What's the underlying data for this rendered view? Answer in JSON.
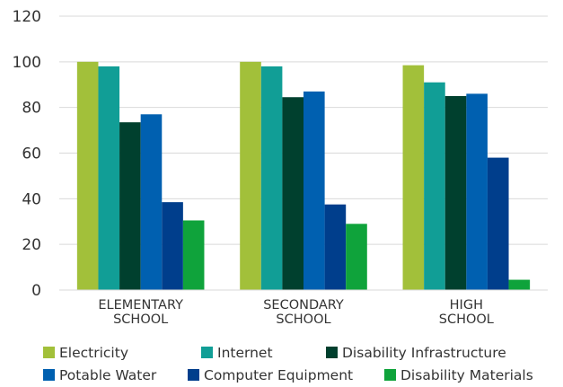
{
  "chart_data": {
    "type": "bar",
    "title": "",
    "xlabel": "",
    "ylabel": "",
    "ylim": [
      0,
      120
    ],
    "yticks": [
      0,
      20,
      40,
      60,
      80,
      100,
      120
    ],
    "grid": true,
    "legend_position": "bottom",
    "categories": [
      [
        "ELEMENTARY",
        "SCHOOL"
      ],
      [
        "SECONDARY",
        "SCHOOL"
      ],
      [
        "HIGH",
        "SCHOOL"
      ]
    ],
    "series": [
      {
        "name": "Electricity",
        "color": "#a2c03a",
        "values": [
          100,
          100,
          98.5
        ]
      },
      {
        "name": "Internet",
        "color": "#119e96",
        "values": [
          98,
          98,
          91
        ]
      },
      {
        "name": "Disability Infrastructure",
        "color": "#00402e",
        "values": [
          73.5,
          84.5,
          85
        ]
      },
      {
        "name": "Potable Water",
        "color": "#0060b0",
        "values": [
          77,
          87,
          86
        ]
      },
      {
        "name": "Computer Equipment",
        "color": "#003e8c",
        "values": [
          38.5,
          37.5,
          58
        ]
      },
      {
        "name": "Disability Materials",
        "color": "#0fa33b",
        "values": [
          30.5,
          29,
          4.5
        ]
      }
    ]
  }
}
